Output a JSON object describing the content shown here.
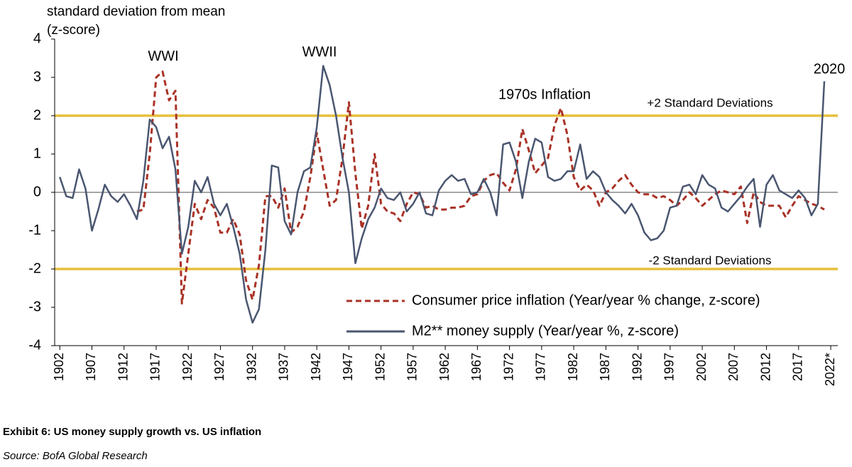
{
  "chart_data": {
    "type": "line",
    "ylabel": [
      "standard deviation from mean",
      "(z-score)"
    ],
    "caption": "Exhibit 6: US money supply growth vs. US inflation",
    "source": "Source: BofA Global Research",
    "annotations": [
      "WWI",
      "WWII",
      "1970s Inflation",
      "2020"
    ],
    "reference_lines": [
      {
        "value": 2,
        "label": "+2 Standard Deviations",
        "color": "#e6c03c"
      },
      {
        "value": -2,
        "label": "-2 Standard Deviations",
        "color": "#e6c03c"
      },
      {
        "value": 0,
        "color": "#a6a6a6"
      }
    ],
    "legend": "lower right",
    "xlim": [
      1901.2,
      2023.1
    ],
    "ylim": [
      -4,
      4
    ],
    "yticks": [
      -4,
      -3,
      -2,
      -1,
      0,
      1,
      2,
      3,
      4
    ],
    "xticks": [
      1902,
      1907,
      1912,
      1917,
      1922,
      1927,
      1932,
      1937,
      1942,
      1947,
      1952,
      1957,
      1962,
      1967,
      1972,
      1977,
      1982,
      1987,
      1992,
      1997,
      2002,
      2007,
      2012,
      2017,
      {
        "value": 2022,
        "label": "2022*"
      }
    ],
    "x": [
      1902,
      1903,
      1904,
      1905,
      1906,
      1907,
      1908,
      1909,
      1910,
      1911,
      1912,
      1913,
      1914,
      1915,
      1916,
      1917,
      1918,
      1919,
      1920,
      1921,
      1922,
      1923,
      1924,
      1925,
      1926,
      1927,
      1928,
      1929,
      1930,
      1931,
      1932,
      1933,
      1934,
      1935,
      1936,
      1937,
      1938,
      1939,
      1940,
      1941,
      1942,
      1943,
      1944,
      1945,
      1946,
      1947,
      1948,
      1949,
      1950,
      1951,
      1952,
      1953,
      1954,
      1955,
      1956,
      1957,
      1958,
      1959,
      1960,
      1961,
      1962,
      1963,
      1964,
      1965,
      1966,
      1967,
      1968,
      1969,
      1970,
      1971,
      1972,
      1973,
      1974,
      1975,
      1976,
      1977,
      1978,
      1979,
      1980,
      1981,
      1982,
      1983,
      1984,
      1985,
      1986,
      1987,
      1988,
      1989,
      1990,
      1991,
      1992,
      1993,
      1994,
      1995,
      1996,
      1997,
      1998,
      1999,
      2000,
      2001,
      2002,
      2003,
      2004,
      2005,
      2006,
      2007,
      2008,
      2009,
      2010,
      2011,
      2012,
      2013,
      2014,
      2015,
      2016,
      2017,
      2018,
      2019,
      2020,
      2021
    ],
    "series": [
      {
        "name": "Consumer price inflation (Year/year % change, z-score)",
        "color": "#a93226",
        "dashed": true,
        "values": [
          null,
          null,
          null,
          null,
          null,
          null,
          null,
          null,
          null,
          null,
          null,
          null,
          -0.5,
          -0.45,
          1.0,
          3.0,
          3.15,
          2.4,
          2.65,
          -2.9,
          -1.6,
          -0.3,
          -0.7,
          -0.2,
          -0.4,
          -1.05,
          -1.05,
          -0.7,
          -1.1,
          -2.3,
          -2.8,
          -1.9,
          -0.1,
          -0.1,
          -0.4,
          0.1,
          -1.05,
          -0.9,
          -0.5,
          0.4,
          1.55,
          0.6,
          -0.35,
          -0.2,
          0.9,
          2.35,
          0.5,
          -0.95,
          -0.35,
          1.0,
          -0.3,
          -0.5,
          -0.55,
          -0.75,
          -0.3,
          0.0,
          -0.05,
          -0.4,
          -0.35,
          -0.45,
          -0.45,
          -0.4,
          -0.4,
          -0.35,
          -0.1,
          -0.05,
          0.3,
          0.45,
          0.5,
          0.25,
          0.05,
          0.6,
          1.65,
          1.1,
          0.5,
          0.7,
          0.9,
          1.75,
          2.2,
          1.5,
          0.4,
          0.05,
          0.2,
          0.05,
          -0.35,
          0.0,
          0.1,
          0.3,
          0.45,
          0.2,
          0.0,
          -0.05,
          -0.05,
          -0.15,
          -0.1,
          -0.2,
          -0.35,
          -0.2,
          0.0,
          -0.15,
          -0.35,
          -0.2,
          -0.05,
          0.05,
          0.0,
          -0.05,
          0.15,
          -0.8,
          0.0,
          -0.25,
          -0.35,
          -0.35,
          -0.35,
          -0.65,
          -0.35,
          -0.1,
          -0.2,
          -0.3,
          -0.35,
          -0.45
        ]
      },
      {
        "name": "M2** money supply (Year/year %, z-score)",
        "color": "#4a5670",
        "dashed": false,
        "values": [
          0.4,
          -0.1,
          -0.15,
          0.6,
          0.1,
          -1.0,
          -0.45,
          0.2,
          -0.1,
          -0.25,
          -0.05,
          -0.35,
          -0.7,
          0.3,
          1.9,
          1.7,
          1.15,
          1.45,
          0.6,
          -1.6,
          -0.9,
          0.3,
          0.0,
          0.4,
          -0.3,
          -0.6,
          -0.3,
          -0.9,
          -1.6,
          -2.8,
          -3.4,
          -3.05,
          -1.5,
          0.7,
          0.65,
          -0.75,
          -1.1,
          0.0,
          0.55,
          0.65,
          1.7,
          3.3,
          2.8,
          2.0,
          0.9,
          0.0,
          -1.85,
          -1.2,
          -0.7,
          -0.4,
          0.1,
          -0.15,
          -0.2,
          0.0,
          -0.5,
          -0.3,
          0.0,
          -0.55,
          -0.6,
          0.05,
          0.3,
          0.45,
          0.3,
          0.35,
          -0.05,
          0.0,
          0.35,
          0.0,
          -0.6,
          1.25,
          1.3,
          0.8,
          -0.15,
          0.8,
          1.4,
          1.3,
          0.4,
          0.3,
          0.35,
          0.55,
          0.55,
          1.25,
          0.35,
          0.55,
          0.4,
          0.0,
          -0.2,
          -0.35,
          -0.55,
          -0.3,
          -0.6,
          -1.05,
          -1.25,
          -1.2,
          -1.0,
          -0.4,
          -0.35,
          0.15,
          0.2,
          -0.05,
          0.45,
          0.2,
          0.1,
          -0.4,
          -0.5,
          -0.3,
          -0.1,
          0.15,
          0.35,
          -0.9,
          0.2,
          0.45,
          0.05,
          -0.05,
          -0.15,
          0.05,
          -0.15,
          -0.6,
          -0.3,
          2.9
        ]
      }
    ]
  }
}
